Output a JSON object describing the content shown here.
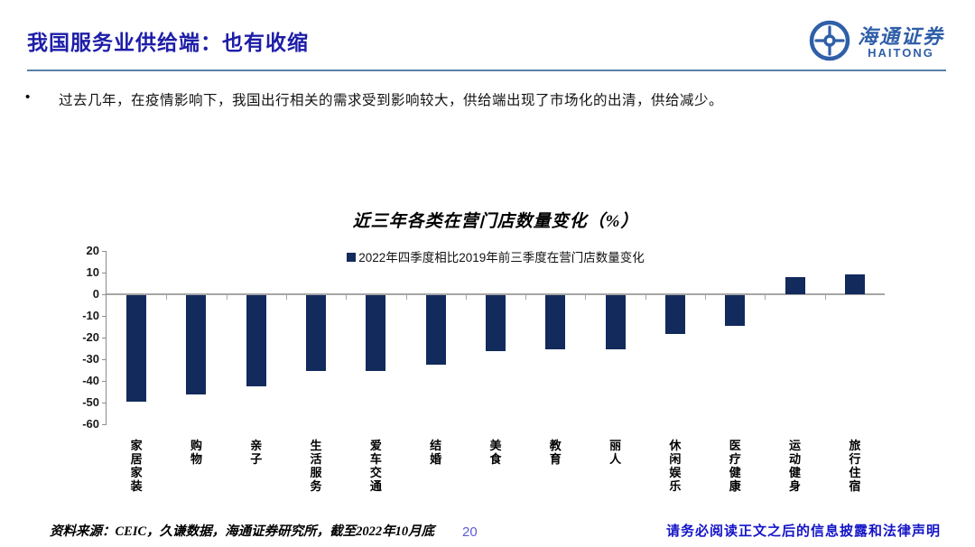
{
  "header": {
    "title": "我国服务业供给端：也有收缩",
    "logo": {
      "cn": "海通证券",
      "en": "HAITONG",
      "color": "#2f5fa8"
    }
  },
  "bullet": {
    "marker": "•",
    "text": "过去几年，在疫情影响下，我国出行相关的需求受到影响较大，供给端出现了市场化的出清，供给减少。"
  },
  "chart_data": {
    "type": "bar",
    "title": "近三年各类在营门店数量变化（%）",
    "legend": [
      "2022年四季度相比2019年前三季度在营门店数量变化"
    ],
    "legend_position": "top",
    "categories": [
      "家居家装",
      "购物",
      "亲子",
      "生活服务",
      "爱车交通",
      "结婚",
      "美食",
      "教育",
      "丽人",
      "休闲娱乐",
      "医疗健康",
      "运动健身",
      "旅行住宿"
    ],
    "values": [
      -49,
      -46,
      -42,
      -35,
      -35,
      -32,
      -26,
      -25,
      -25,
      -18,
      -14,
      8,
      9
    ],
    "xlabel": "",
    "ylabel": "",
    "ylim": [
      -60,
      20
    ],
    "yticks": [
      20,
      10,
      0,
      -10,
      -20,
      -30,
      -40,
      -50,
      -60
    ],
    "grid": "zero-line-only",
    "bar_color": "#122a5c"
  },
  "footer": {
    "source": "资料来源：CEIC，久谦数据，海通证券研究所，截至2022年10月底",
    "page_number": "20",
    "disclaimer": "请务必阅读正文之后的信息披露和法律声明"
  }
}
